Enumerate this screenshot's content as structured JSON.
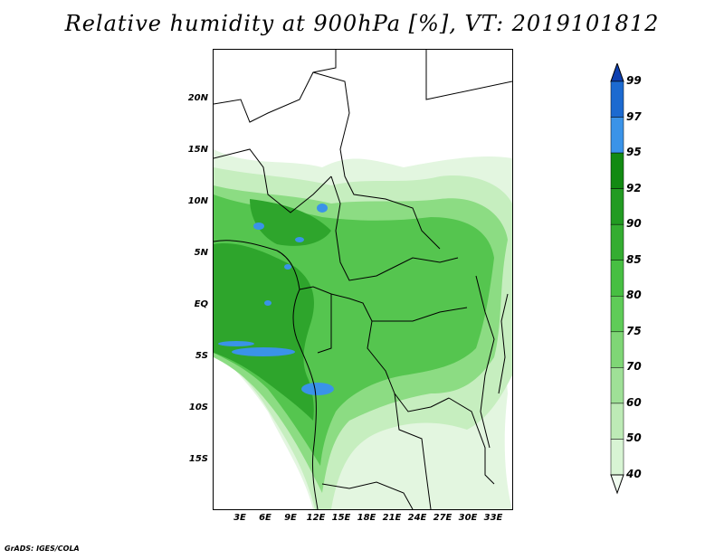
{
  "title": "Relative humidity at 900hPa [%], VT: 2019101812",
  "credit": "GrADS: IGES/COLA",
  "lat_ticks": [
    "20N",
    "15N",
    "10N",
    "5N",
    "EQ",
    "5S",
    "10S",
    "15S"
  ],
  "lon_ticks": [
    "3E",
    "6E",
    "9E",
    "12E",
    "15E",
    "18E",
    "21E",
    "24E",
    "27E",
    "30E",
    "33E"
  ],
  "colorbar": {
    "levels": [
      "40",
      "50",
      "60",
      "70",
      "75",
      "80",
      "85",
      "90",
      "92",
      "95",
      "97",
      "99"
    ],
    "colors": [
      "#f0fbef",
      "#d8f4d4",
      "#bdeab6",
      "#9fe097",
      "#7fd676",
      "#5fcc58",
      "#47bf42",
      "#34ad31",
      "#229b22",
      "#128a12",
      "#3a93e8",
      "#1c6ad0",
      "#0d3fb0"
    ]
  }
}
